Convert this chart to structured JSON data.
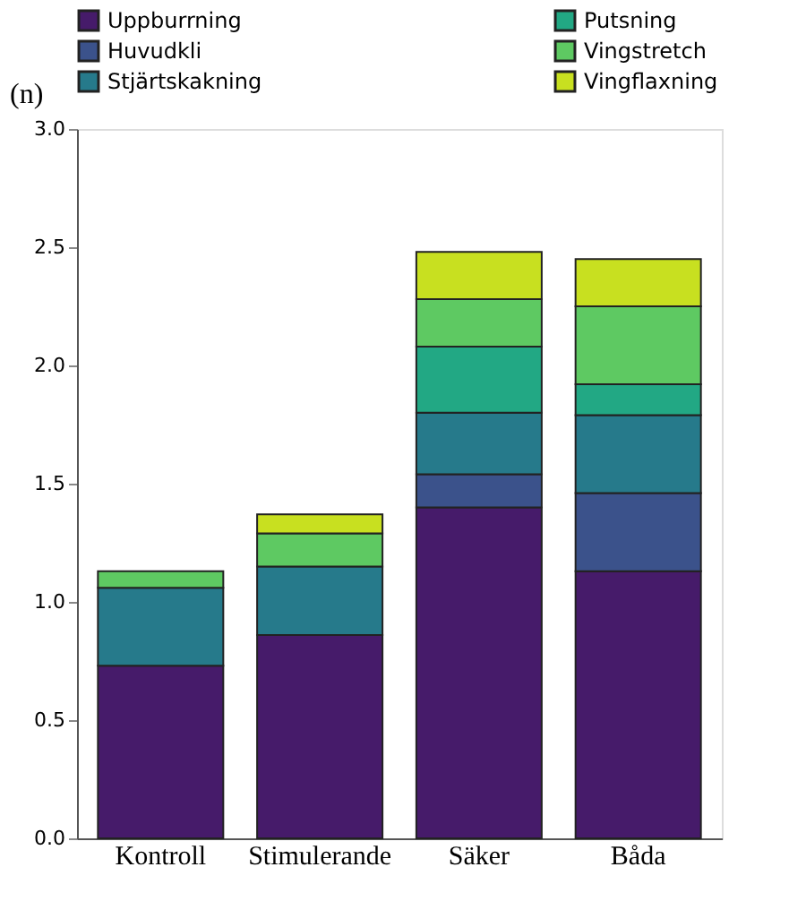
{
  "chart_data": {
    "type": "bar",
    "stacked": true,
    "ylabel": "(n)",
    "categories": [
      "Kontroll",
      "Stimulerande",
      "Säker",
      "Båda"
    ],
    "series": [
      {
        "name": "Uppburrning",
        "color": "#461b6a",
        "values": [
          0.73,
          0.86,
          1.4,
          1.13
        ]
      },
      {
        "name": "Huvudkli",
        "color": "#3b528b",
        "values": [
          null,
          null,
          0.14,
          0.33
        ]
      },
      {
        "name": "Stjärtskakning",
        "color": "#267a8b",
        "values": [
          0.33,
          0.29,
          0.26,
          0.33
        ]
      },
      {
        "name": "Putsning",
        "color": "#22a884",
        "values": [
          null,
          null,
          0.28,
          0.13
        ]
      },
      {
        "name": "Vingstretch",
        "color": "#5ec962",
        "values": [
          0.07,
          0.14,
          0.2,
          0.33
        ]
      },
      {
        "name": "Vingflaxning",
        "color": "#c8e020",
        "values": [
          null,
          0.08,
          0.2,
          0.2
        ]
      }
    ],
    "ylim": [
      0,
      3.0
    ],
    "yticks": [
      {
        "value": 0,
        "label": "0.0"
      },
      {
        "value": 0.5,
        "label": "0.5"
      },
      {
        "value": 1,
        "label": "1.0"
      },
      {
        "value": 1.5,
        "label": "1.5"
      },
      {
        "value": 2,
        "label": "2.0"
      },
      {
        "value": 2.5,
        "label": "2.5"
      },
      {
        "value": 3,
        "label": "3.0"
      }
    ],
    "grid": false,
    "legend": "top"
  }
}
